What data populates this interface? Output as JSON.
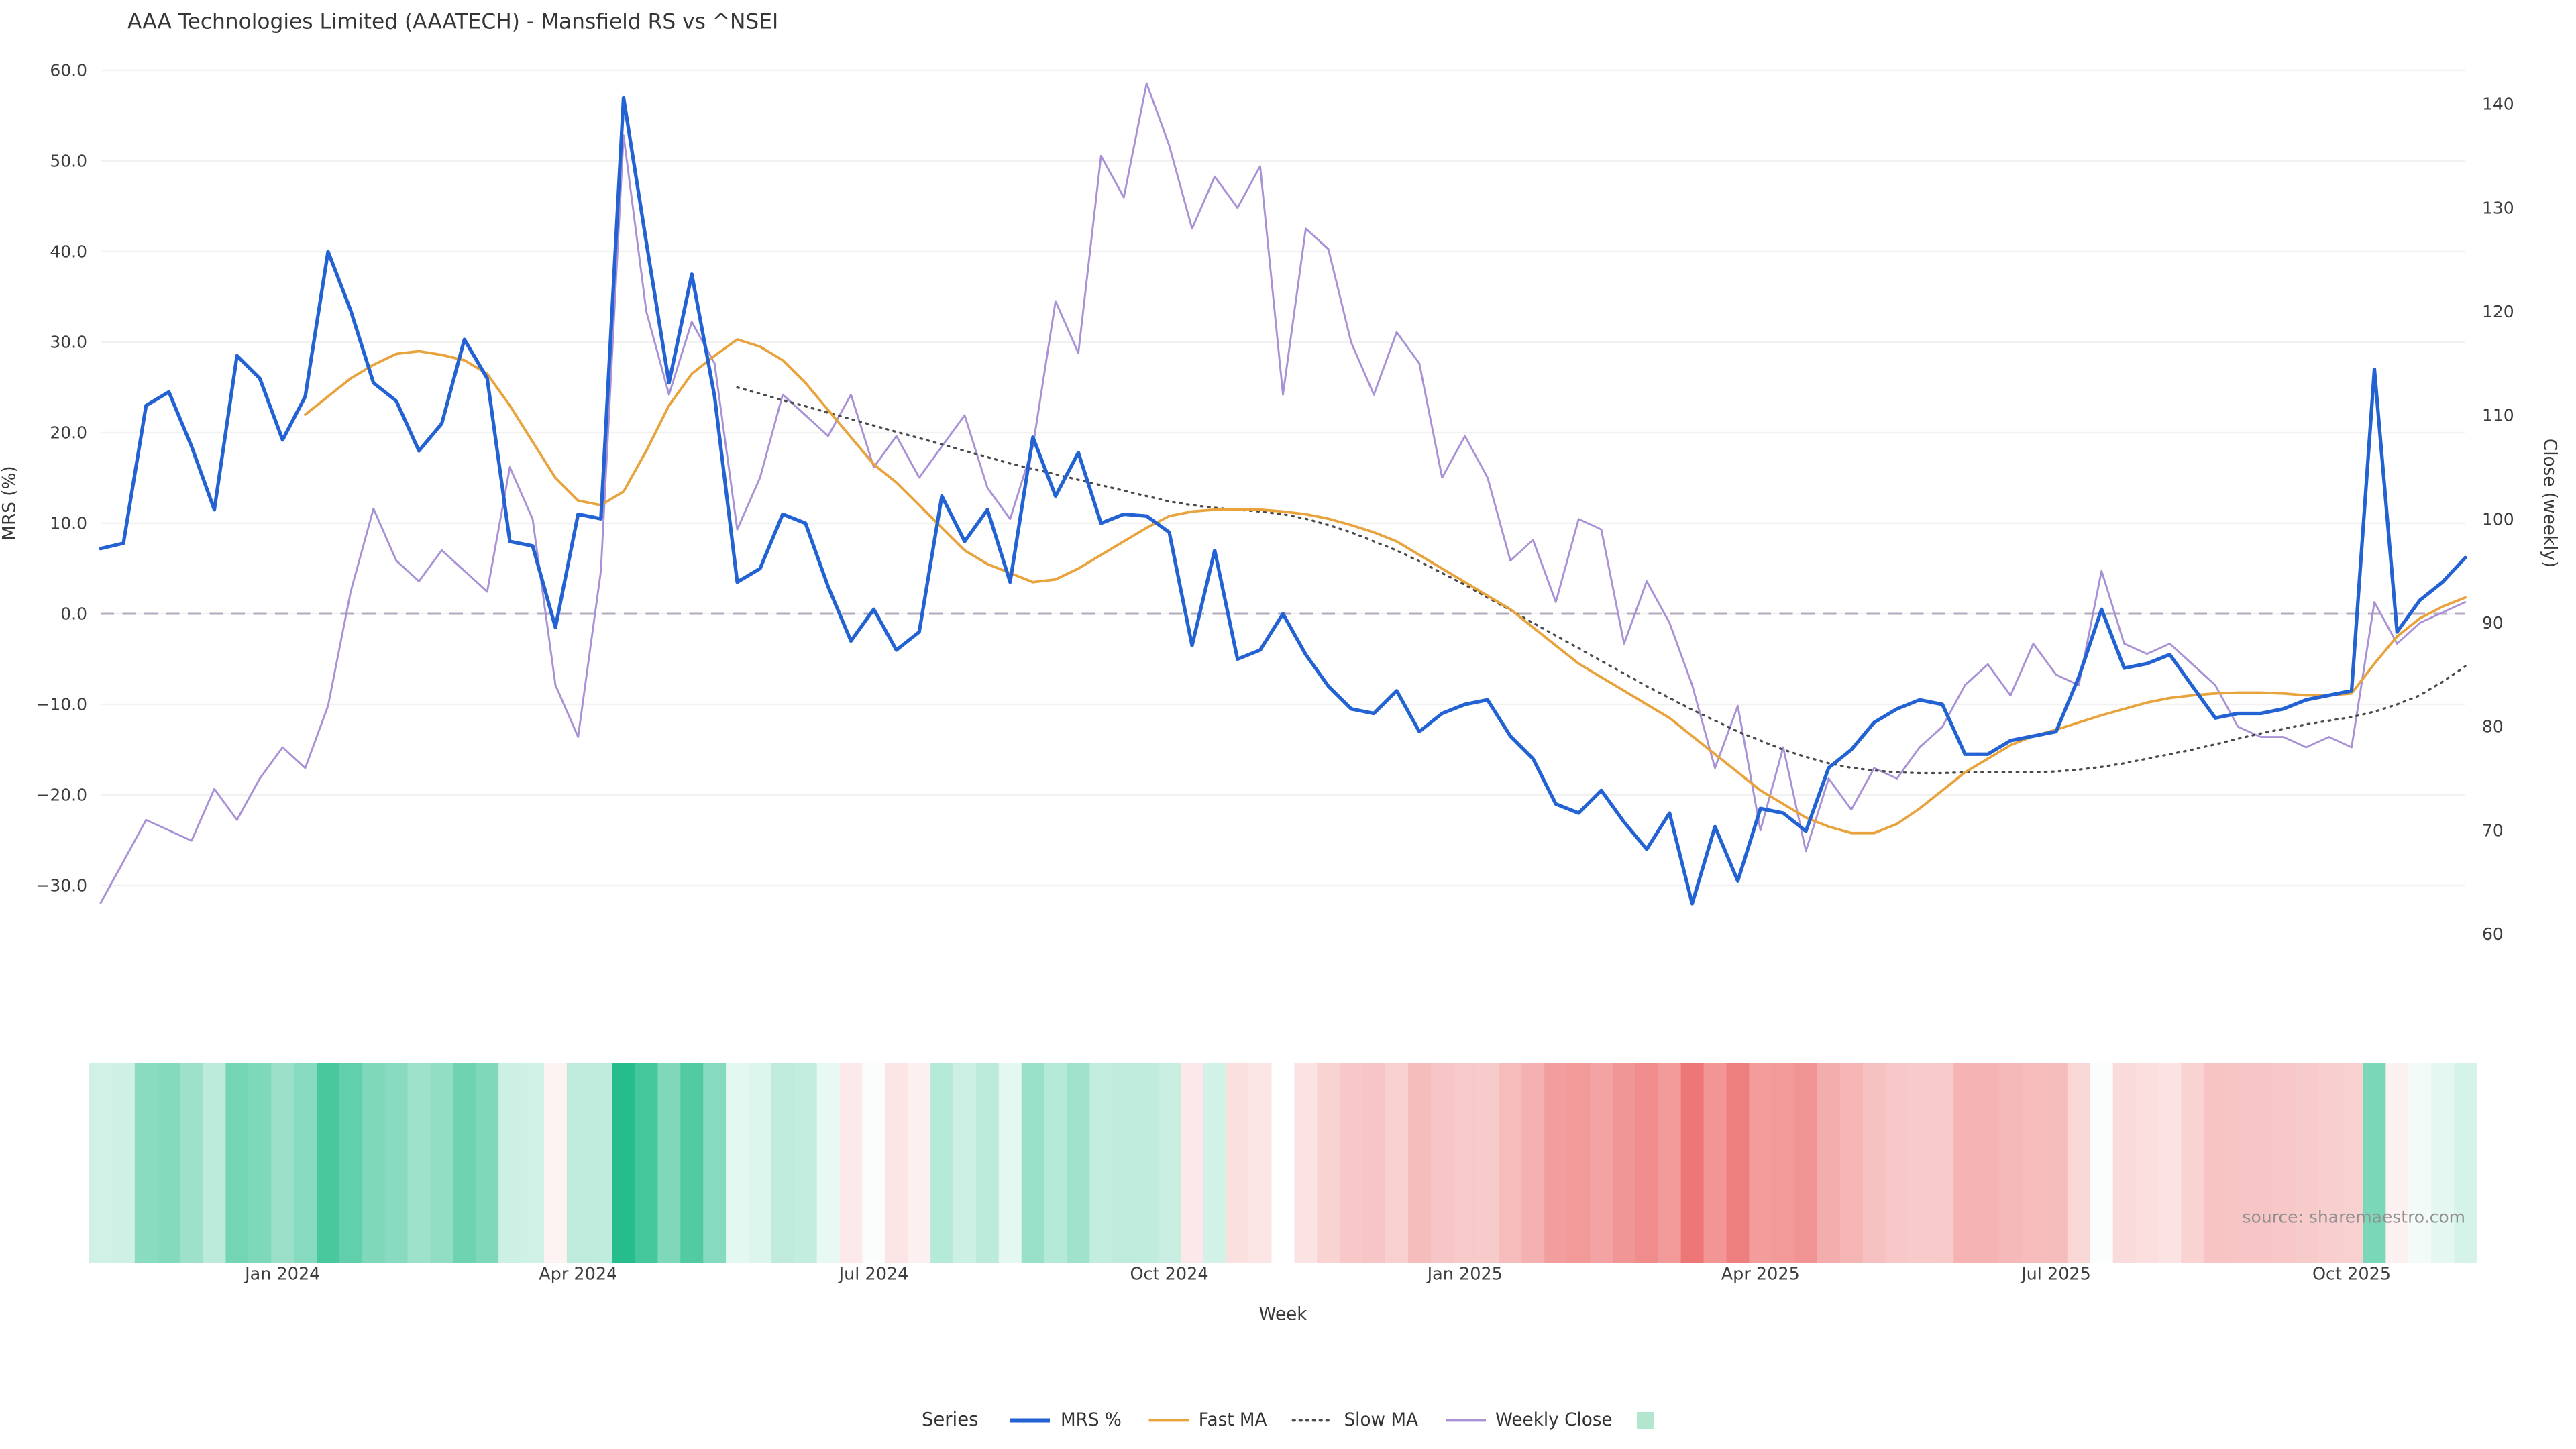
{
  "chart_data": {
    "type": "line",
    "title": "AAA Technologies Limited (AAATECH) - Mansfield RS vs ^NSEI",
    "xlabel": "Week",
    "ylabel_left": "MRS (%)",
    "ylabel_right": "Close (weekly)",
    "source": "source: sharemaestro.com",
    "grid": "horizontal-faint",
    "legend": {
      "title": "Series",
      "position": "bottom-center"
    },
    "left_axis": {
      "ticks": [
        60,
        50,
        40,
        30,
        20,
        10,
        0,
        -10,
        -20,
        -30
      ],
      "format": "one-decimal"
    },
    "right_axis": {
      "ticks": [
        140,
        130,
        120,
        110,
        100,
        90,
        80,
        70,
        60
      ],
      "format": "integer"
    },
    "zero_line": {
      "value": 0,
      "color": "#b4a9bf",
      "style": "dashed"
    },
    "x_ticks": [
      {
        "label": "Jan 2024",
        "week": 8
      },
      {
        "label": "Apr 2024",
        "week": 21
      },
      {
        "label": "Jul 2024",
        "week": 34
      },
      {
        "label": "Oct 2024",
        "week": 47
      },
      {
        "label": "Jan 2025",
        "week": 60
      },
      {
        "label": "Apr 2025",
        "week": 73
      },
      {
        "label": "Jul 2025",
        "week": 86
      },
      {
        "label": "Oct 2025",
        "week": 99
      }
    ],
    "series": [
      {
        "name": "MRS %",
        "axis": "left",
        "color": "#2262d3",
        "style": "solid",
        "width": 2.1,
        "values": [
          7.2,
          7.8,
          23.0,
          24.5,
          18.5,
          11.5,
          28.5,
          26.0,
          19.2,
          24.0,
          40.0,
          33.5,
          25.5,
          23.5,
          18.0,
          21.0,
          30.3,
          26.0,
          8.0,
          7.5,
          -1.5,
          11.0,
          10.5,
          57.0,
          41.0,
          25.5,
          37.5,
          24.0,
          3.5,
          5.0,
          11.0,
          10.0,
          3.0,
          -3.0,
          0.5,
          -4.0,
          -2.0,
          13.0,
          8.0,
          11.5,
          3.5,
          19.5,
          13.0,
          17.8,
          10.0,
          11.0,
          10.8,
          9.0,
          -3.5,
          7.0,
          -5.0,
          -4.0,
          0.0,
          -4.5,
          -8.0,
          -10.5,
          -11.0,
          -8.5,
          -13.0,
          -11.0,
          -10.0,
          -9.5,
          -13.5,
          -16.0,
          -21.0,
          -22.0,
          -19.5,
          -23.0,
          -26.0,
          -22.0,
          -32.0,
          -23.5,
          -29.5,
          -21.5,
          -22.0,
          -24.0,
          -17.0,
          -15.0,
          -12.0,
          -10.5,
          -9.5,
          -10.0,
          -15.5,
          -15.5,
          -14.0,
          -13.5,
          -13.0,
          -7.0,
          0.5,
          -6.0,
          -5.5,
          -4.5,
          -8.0,
          -11.5,
          -11.0,
          -11.0,
          -10.5,
          -9.5,
          -9.0,
          -8.5,
          27.0,
          -2.0,
          1.5,
          3.5,
          6.2
        ]
      },
      {
        "name": "Fast MA",
        "axis": "left",
        "color": "#e8a33d",
        "style": "solid",
        "width": 1.5,
        "values": [
          null,
          null,
          null,
          null,
          null,
          null,
          null,
          null,
          null,
          22.0,
          24.0,
          26.0,
          27.5,
          28.7,
          29.0,
          28.6,
          28.0,
          26.5,
          23.0,
          19.0,
          15.0,
          12.5,
          12.0,
          13.5,
          18.0,
          23.0,
          26.5,
          28.5,
          30.3,
          29.5,
          28.0,
          25.5,
          22.5,
          19.5,
          16.5,
          14.5,
          12.0,
          9.5,
          7.0,
          5.5,
          4.5,
          3.5,
          3.8,
          5.0,
          6.5,
          8.0,
          9.5,
          10.8,
          11.3,
          11.5,
          11.5,
          11.5,
          11.3,
          11.0,
          10.5,
          9.8,
          9.0,
          8.0,
          6.5,
          5.0,
          3.5,
          2.0,
          0.5,
          -1.5,
          -3.5,
          -5.5,
          -7.0,
          -8.5,
          -10.0,
          -11.5,
          -13.5,
          -15.5,
          -17.5,
          -19.5,
          -21.0,
          -22.5,
          -23.5,
          -24.2,
          -24.2,
          -23.2,
          -21.5,
          -19.5,
          -17.5,
          -16.0,
          -14.5,
          -13.5,
          -12.8,
          -12.0,
          -11.2,
          -10.5,
          -9.8,
          -9.3,
          -9.0,
          -8.8,
          -8.7,
          -8.7,
          -8.8,
          -9.0,
          -9.0,
          -8.8,
          -5.5,
          -2.5,
          -0.5,
          0.8,
          1.8
        ]
      },
      {
        "name": "Slow MA",
        "axis": "left",
        "color": "#4a4a4a",
        "style": "dotted",
        "width": 1.3,
        "values": [
          null,
          null,
          null,
          null,
          null,
          null,
          null,
          null,
          null,
          null,
          null,
          null,
          null,
          null,
          null,
          null,
          null,
          null,
          null,
          null,
          null,
          null,
          null,
          null,
          null,
          null,
          null,
          null,
          25.0,
          24.3,
          23.6,
          22.9,
          22.2,
          21.5,
          20.8,
          20.1,
          19.4,
          18.7,
          18.0,
          17.3,
          16.6,
          16.0,
          15.4,
          14.8,
          14.2,
          13.6,
          13.0,
          12.4,
          12.0,
          11.7,
          11.5,
          11.3,
          11.0,
          10.5,
          9.8,
          9.0,
          8.0,
          7.0,
          5.8,
          4.5,
          3.2,
          1.8,
          0.4,
          -1.0,
          -2.4,
          -3.8,
          -5.2,
          -6.6,
          -8.0,
          -9.3,
          -10.6,
          -11.8,
          -13.0,
          -14.0,
          -15.0,
          -15.8,
          -16.5,
          -17.0,
          -17.3,
          -17.5,
          -17.6,
          -17.6,
          -17.5,
          -17.5,
          -17.5,
          -17.5,
          -17.4,
          -17.2,
          -16.9,
          -16.5,
          -16.0,
          -15.5,
          -15.0,
          -14.4,
          -13.8,
          -13.2,
          -12.7,
          -12.2,
          -11.8,
          -11.4,
          -10.8,
          -10.0,
          -9.0,
          -7.5,
          -5.8
        ]
      },
      {
        "name": "Weekly Close",
        "axis": "right",
        "color": "#a991d6",
        "style": "solid",
        "width": 1.15,
        "values": [
          63,
          67,
          71,
          70,
          69,
          74,
          71,
          75,
          78,
          76,
          82,
          93,
          101,
          96,
          94,
          97,
          95,
          93,
          105,
          100,
          84,
          79,
          95,
          137,
          120,
          112,
          119,
          115,
          99,
          104,
          112,
          110,
          108,
          112,
          105,
          108,
          104,
          107,
          110,
          103,
          100,
          107,
          121,
          116,
          135,
          131,
          142,
          136,
          128,
          133,
          130,
          134,
          112,
          128,
          126,
          117,
          112,
          118,
          115,
          104,
          108,
          104,
          96,
          98,
          92,
          100,
          99,
          88,
          94,
          90,
          84,
          76,
          82,
          70,
          78,
          68,
          75,
          72,
          76,
          75,
          78,
          80,
          84,
          86,
          83,
          88,
          85,
          84,
          95,
          88,
          87,
          88,
          86,
          84,
          80,
          79,
          79,
          78,
          79,
          78,
          92,
          88,
          90,
          91,
          92
        ]
      }
    ],
    "heatmap": {
      "based_on": "MRS %",
      "positive_color": "#25bd8b",
      "negative_color": "#ec7070",
      "legend_swatch": "#b2e6cf"
    },
    "colors": {
      "grid": "#f1f1f1",
      "tick_label": "#3d3d3d",
      "title": "#363636",
      "background": "#ffffff"
    }
  }
}
